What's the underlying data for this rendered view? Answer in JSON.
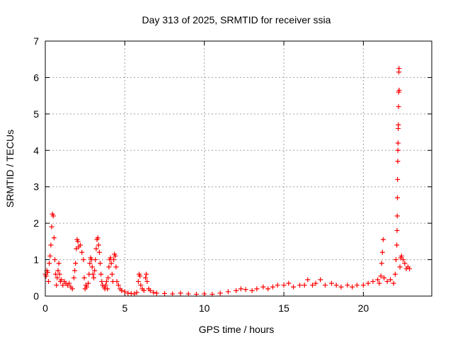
{
  "chart_data": {
    "type": "scatter",
    "title": "Day 313 of 2025, SRMTID for receiver ssia",
    "xlabel": "GPS time / hours",
    "ylabel": "SRMTID / TECUs",
    "xlim": [
      0,
      24.3
    ],
    "ylim": [
      0,
      7
    ],
    "xticks": [
      0,
      5,
      10,
      15,
      20
    ],
    "yticks": [
      0,
      1,
      2,
      3,
      4,
      5,
      6,
      7
    ],
    "xtick_labels": [
      "0",
      "5",
      "10",
      "15",
      "20"
    ],
    "ytick_labels": [
      "0",
      "1",
      "2",
      "3",
      "4",
      "5",
      "6",
      "7"
    ],
    "grid": true,
    "marker": "+",
    "color": "#ff0000",
    "series": [
      {
        "name": "SRMTID",
        "points": [
          [
            0.0,
            0.6
          ],
          [
            0.05,
            0.55
          ],
          [
            0.1,
            0.7
          ],
          [
            0.15,
            0.65
          ],
          [
            0.2,
            0.4
          ],
          [
            0.25,
            0.9
          ],
          [
            0.3,
            1.1
          ],
          [
            0.35,
            1.4
          ],
          [
            0.4,
            1.9
          ],
          [
            0.45,
            2.25
          ],
          [
            0.5,
            2.2
          ],
          [
            0.55,
            1.6
          ],
          [
            0.6,
            1.0
          ],
          [
            0.65,
            0.6
          ],
          [
            0.7,
            0.3
          ],
          [
            0.75,
            0.5
          ],
          [
            0.8,
            0.7
          ],
          [
            0.85,
            0.9
          ],
          [
            0.9,
            0.6
          ],
          [
            0.95,
            0.4
          ],
          [
            1.0,
            0.45
          ],
          [
            1.1,
            0.3
          ],
          [
            1.2,
            0.4
          ],
          [
            1.3,
            0.35
          ],
          [
            1.4,
            0.3
          ],
          [
            1.5,
            0.35
          ],
          [
            1.6,
            0.25
          ],
          [
            1.7,
            0.2
          ],
          [
            1.8,
            0.5
          ],
          [
            1.85,
            0.7
          ],
          [
            1.9,
            0.9
          ],
          [
            1.95,
            1.3
          ],
          [
            2.0,
            1.55
          ],
          [
            2.05,
            1.5
          ],
          [
            2.1,
            1.35
          ],
          [
            2.2,
            1.4
          ],
          [
            2.3,
            1.2
          ],
          [
            2.4,
            1.0
          ],
          [
            2.45,
            0.5
          ],
          [
            2.5,
            0.2
          ],
          [
            2.55,
            0.3
          ],
          [
            2.6,
            0.25
          ],
          [
            2.7,
            0.35
          ],
          [
            2.75,
            0.6
          ],
          [
            2.8,
            0.9
          ],
          [
            2.85,
            1.05
          ],
          [
            2.9,
            1.0
          ],
          [
            2.95,
            0.8
          ],
          [
            3.0,
            0.6
          ],
          [
            3.05,
            0.5
          ],
          [
            3.1,
            0.7
          ],
          [
            3.15,
            1.0
          ],
          [
            3.2,
            1.3
          ],
          [
            3.25,
            1.55
          ],
          [
            3.3,
            1.6
          ],
          [
            3.35,
            1.4
          ],
          [
            3.4,
            1.2
          ],
          [
            3.45,
            0.9
          ],
          [
            3.5,
            0.6
          ],
          [
            3.55,
            0.4
          ],
          [
            3.6,
            0.3
          ],
          [
            3.7,
            0.25
          ],
          [
            3.75,
            0.2
          ],
          [
            3.8,
            0.3
          ],
          [
            3.85,
            0.4
          ],
          [
            3.9,
            0.2
          ],
          [
            3.95,
            0.5
          ],
          [
            4.0,
            0.8
          ],
          [
            4.05,
            1.0
          ],
          [
            4.1,
            1.05
          ],
          [
            4.15,
            0.9
          ],
          [
            4.2,
            0.6
          ],
          [
            4.25,
            0.4
          ],
          [
            4.3,
            1.0
          ],
          [
            4.35,
            1.15
          ],
          [
            4.4,
            1.1
          ],
          [
            4.45,
            0.8
          ],
          [
            4.5,
            0.4
          ],
          [
            4.6,
            0.3
          ],
          [
            4.7,
            0.2
          ],
          [
            4.8,
            0.15
          ],
          [
            5.0,
            0.12
          ],
          [
            5.2,
            0.08
          ],
          [
            5.4,
            0.07
          ],
          [
            5.6,
            0.06
          ],
          [
            5.75,
            0.1
          ],
          [
            5.85,
            0.4
          ],
          [
            5.9,
            0.6
          ],
          [
            5.95,
            0.55
          ],
          [
            6.0,
            0.3
          ],
          [
            6.1,
            0.2
          ],
          [
            6.2,
            0.15
          ],
          [
            6.3,
            0.5
          ],
          [
            6.35,
            0.6
          ],
          [
            6.4,
            0.4
          ],
          [
            6.5,
            0.2
          ],
          [
            6.6,
            0.15
          ],
          [
            6.8,
            0.1
          ],
          [
            7.0,
            0.08
          ],
          [
            7.5,
            0.07
          ],
          [
            8.0,
            0.06
          ],
          [
            8.5,
            0.08
          ],
          [
            9.0,
            0.06
          ],
          [
            9.5,
            0.05
          ],
          [
            10.0,
            0.06
          ],
          [
            10.5,
            0.05
          ],
          [
            11.0,
            0.08
          ],
          [
            11.5,
            0.12
          ],
          [
            12.0,
            0.15
          ],
          [
            12.3,
            0.2
          ],
          [
            12.6,
            0.18
          ],
          [
            13.0,
            0.15
          ],
          [
            13.3,
            0.2
          ],
          [
            13.7,
            0.25
          ],
          [
            14.0,
            0.2
          ],
          [
            14.3,
            0.25
          ],
          [
            14.6,
            0.3
          ],
          [
            15.0,
            0.3
          ],
          [
            15.3,
            0.35
          ],
          [
            15.6,
            0.25
          ],
          [
            16.0,
            0.3
          ],
          [
            16.3,
            0.3
          ],
          [
            16.5,
            0.45
          ],
          [
            16.8,
            0.3
          ],
          [
            17.0,
            0.35
          ],
          [
            17.3,
            0.45
          ],
          [
            17.6,
            0.3
          ],
          [
            18.0,
            0.35
          ],
          [
            18.3,
            0.3
          ],
          [
            18.6,
            0.25
          ],
          [
            19.0,
            0.3
          ],
          [
            19.3,
            0.25
          ],
          [
            19.6,
            0.3
          ],
          [
            20.0,
            0.3
          ],
          [
            20.3,
            0.35
          ],
          [
            20.6,
            0.4
          ],
          [
            20.9,
            0.45
          ],
          [
            21.0,
            0.35
          ],
          [
            21.1,
            0.55
          ],
          [
            21.15,
            0.9
          ],
          [
            21.2,
            1.2
          ],
          [
            21.25,
            1.55
          ],
          [
            21.3,
            0.5
          ],
          [
            21.5,
            0.4
          ],
          [
            21.7,
            0.45
          ],
          [
            21.9,
            0.35
          ],
          [
            22.0,
            0.6
          ],
          [
            22.05,
            1.0
          ],
          [
            22.1,
            1.4
          ],
          [
            22.12,
            1.8
          ],
          [
            22.13,
            2.2
          ],
          [
            22.14,
            2.7
          ],
          [
            22.15,
            3.2
          ],
          [
            22.16,
            3.7
          ],
          [
            22.17,
            4.0
          ],
          [
            22.18,
            4.2
          ],
          [
            22.19,
            4.6
          ],
          [
            22.2,
            4.7
          ],
          [
            22.21,
            5.2
          ],
          [
            22.22,
            5.6
          ],
          [
            22.23,
            6.15
          ],
          [
            22.24,
            6.25
          ],
          [
            22.25,
            5.65
          ],
          [
            22.3,
            0.8
          ],
          [
            22.35,
            1.05
          ],
          [
            22.4,
            1.1
          ],
          [
            22.5,
            1.0
          ],
          [
            22.6,
            0.9
          ],
          [
            22.7,
            0.75
          ],
          [
            22.8,
            0.8
          ],
          [
            22.9,
            0.75
          ]
        ]
      }
    ]
  }
}
